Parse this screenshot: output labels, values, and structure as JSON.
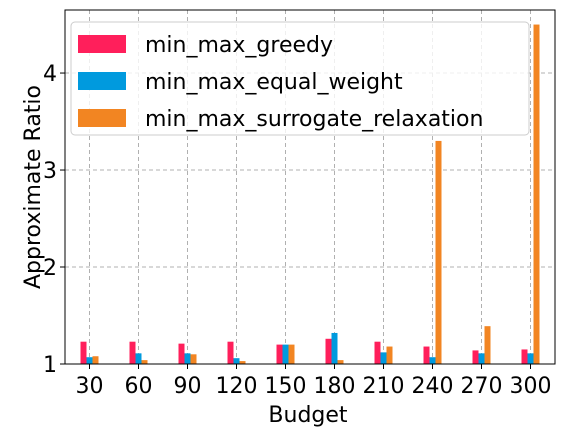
{
  "chart_data": {
    "type": "bar",
    "title": "",
    "xlabel": "Budget",
    "ylabel": "Approximate Ratio",
    "categories": [
      "30",
      "60",
      "90",
      "120",
      "150",
      "180",
      "210",
      "240",
      "270",
      "300"
    ],
    "series": [
      {
        "name": "min_max_greedy",
        "color": "#ff1f5b",
        "values": [
          1.23,
          1.23,
          1.21,
          1.23,
          1.2,
          1.26,
          1.23,
          1.18,
          1.14,
          1.15
        ]
      },
      {
        "name": "min_max_equal_weight",
        "color": "#009ade",
        "values": [
          1.07,
          1.11,
          1.11,
          1.06,
          1.2,
          1.32,
          1.12,
          1.07,
          1.11,
          1.11
        ]
      },
      {
        "name": "min_max_surrogate_relaxation",
        "color": "#f28522",
        "values": [
          1.08,
          1.04,
          1.1,
          1.03,
          1.2,
          1.04,
          1.18,
          3.3,
          1.39,
          4.5
        ]
      }
    ],
    "ylim": [
      1.0,
      4.65
    ],
    "yticks": [
      "1",
      "2",
      "3",
      "4"
    ],
    "grid": true,
    "legend_position": "top-left"
  }
}
